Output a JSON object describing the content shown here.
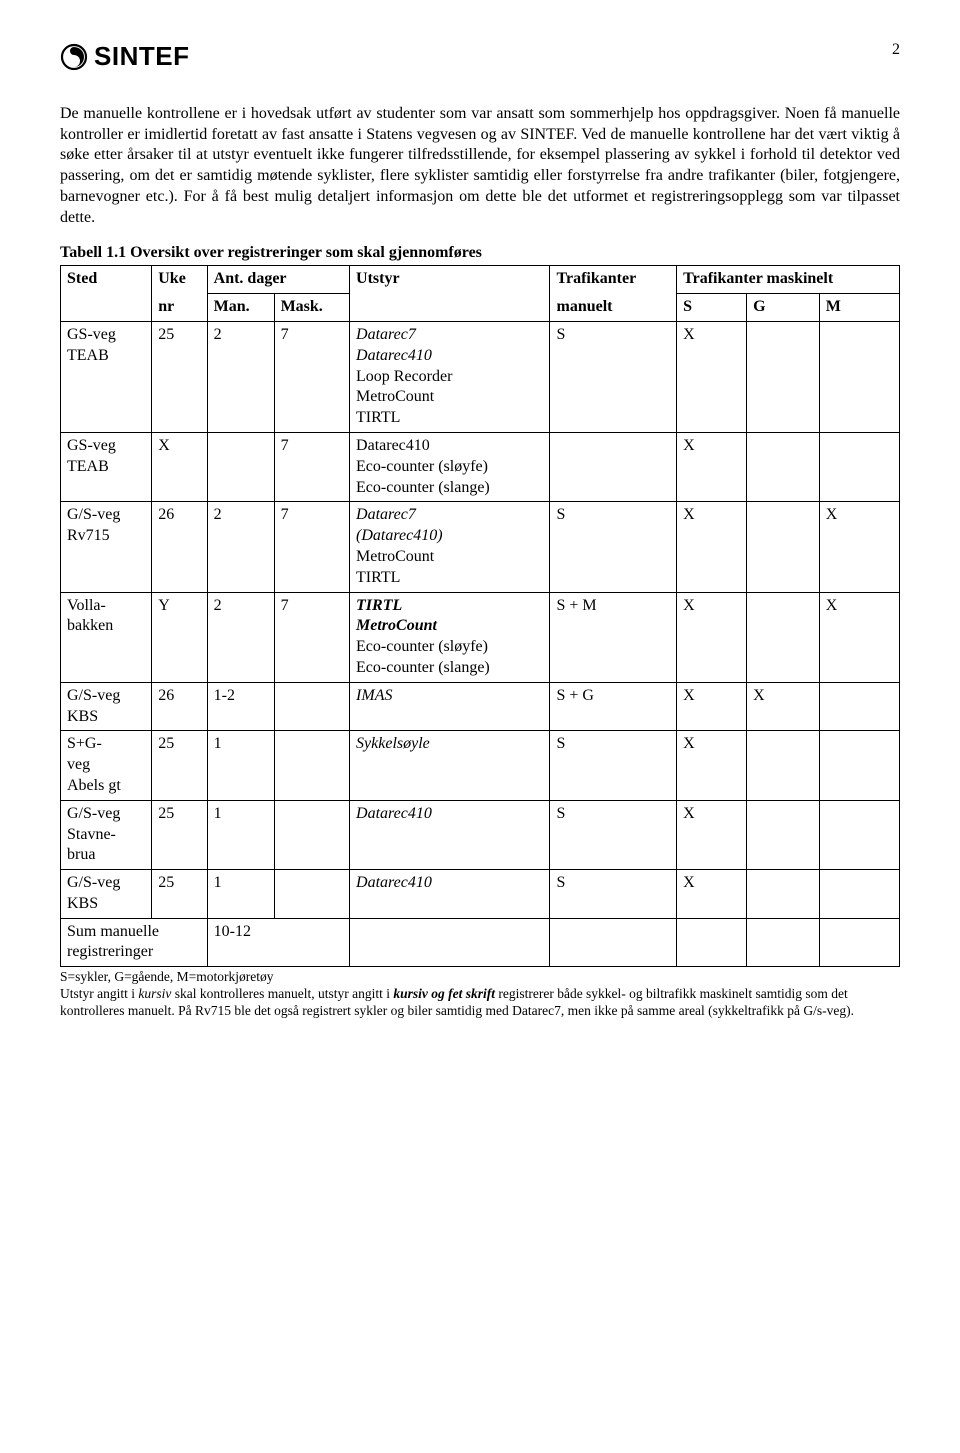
{
  "page": {
    "number": "2",
    "logo_text": "SINTEF"
  },
  "paragraphs": {
    "p1": "De manuelle kontrollene er i hovedsak utført av studenter som var ansatt som sommerhjelp hos oppdragsgiver. Noen få manuelle kontroller er imidlertid foretatt av fast ansatte i Statens vegvesen og av SINTEF. Ved de manuelle kontrollene har det vært viktig å søke etter årsaker til at utstyr eventuelt ikke fungerer tilfredsstillende, for eksempel plassering av sykkel i forhold til detektor ved passering, om det er samtidig møtende syklister, flere syklister samtidig eller forstyrrelse fra andre trafikanter (biler, fotgjengere, barnevogner etc.). For å få best mulig detaljert informasjon om dette ble det utformet et registreringsopplegg som var tilpasset dette."
  },
  "table": {
    "title": "Tabell 1.1 Oversikt over registreringer som skal gjennomføres",
    "headers": {
      "sted": "Sted",
      "uke": "Uke",
      "nr": "nr",
      "ant_dager": "Ant. dager",
      "man": "Man.",
      "mask": "Mask.",
      "utstyr": "Utstyr",
      "trafikanter_manuelt": "Trafikanter",
      "manuelt": "manuelt",
      "trafikanter_maskinelt": "Trafikanter maskinelt",
      "s": "S",
      "g": "G",
      "m": "M"
    },
    "rows": [
      {
        "sted": "GS-veg\nTEAB",
        "uke": "25",
        "man": "2",
        "mask": "7",
        "utstyr_lines": [
          {
            "t": "Datarec7",
            "style": "italic"
          },
          {
            "t": "Datarec410",
            "style": "italic"
          },
          {
            "t": "Loop Recorder",
            "style": ""
          },
          {
            "t": "MetroCount",
            "style": ""
          },
          {
            "t": "TIRTL",
            "style": ""
          }
        ],
        "manuelt": "S",
        "s": "X",
        "g": "",
        "m": ""
      },
      {
        "sted": "GS-veg\nTEAB",
        "uke": "X",
        "man": "",
        "mask": "7",
        "utstyr_lines": [
          {
            "t": "Datarec410",
            "style": ""
          },
          {
            "t": "Eco-counter (sløyfe)",
            "style": ""
          },
          {
            "t": "Eco-counter (slange)",
            "style": ""
          }
        ],
        "manuelt": "",
        "s": "X",
        "g": "",
        "m": ""
      },
      {
        "sted": "G/S-veg\nRv715",
        "uke": "26",
        "man": "2",
        "mask": "7",
        "utstyr_lines": [
          {
            "t": "Datarec7",
            "style": "italic"
          },
          {
            "t": "(Datarec410)",
            "style": "italic"
          },
          {
            "t": "MetroCount",
            "style": ""
          },
          {
            "t": "TIRTL",
            "style": ""
          }
        ],
        "manuelt": "S",
        "s": "X",
        "g": "",
        "m": "X"
      },
      {
        "sted": "Volla-\nbakken",
        "uke": "Y",
        "man": "2",
        "mask": "7",
        "utstyr_lines": [
          {
            "t": "TIRTL",
            "style": "bolditalic"
          },
          {
            "t": "MetroCount",
            "style": "bolditalic"
          },
          {
            "t": "Eco-counter (sløyfe)",
            "style": ""
          },
          {
            "t": "Eco-counter (slange)",
            "style": ""
          }
        ],
        "manuelt": "S + M",
        "s": "X",
        "g": "",
        "m": "X"
      },
      {
        "sted": "G/S-veg\nKBS",
        "uke": "26",
        "man": "1-2",
        "mask": "",
        "utstyr_lines": [
          {
            "t": "IMAS",
            "style": "italic"
          }
        ],
        "manuelt": "S + G",
        "s": "X",
        "g": "X",
        "m": ""
      },
      {
        "sted": "S+G-\nveg\nAbels gt",
        "uke": "25",
        "man": "1",
        "mask": "",
        "utstyr_lines": [
          {
            "t": "Sykkelsøyle",
            "style": "italic"
          }
        ],
        "manuelt": "S",
        "s": "X",
        "g": "",
        "m": ""
      },
      {
        "sted": "G/S-veg\nStavne-\nbrua",
        "uke": "25",
        "man": "1",
        "mask": "",
        "utstyr_lines": [
          {
            "t": "Datarec410",
            "style": "italic"
          }
        ],
        "manuelt": "S",
        "s": "X",
        "g": "",
        "m": ""
      },
      {
        "sted": "G/S-veg\nKBS",
        "uke": "25",
        "man": "1",
        "mask": "",
        "utstyr_lines": [
          {
            "t": "Datarec410",
            "style": "italic"
          }
        ],
        "manuelt": "S",
        "s": "X",
        "g": "",
        "m": ""
      }
    ],
    "sum_row": {
      "label": "Sum manuelle\nregistreringer",
      "value": "10-12"
    }
  },
  "footnote": {
    "line1_prefix": "S=sykler, G=gående, M=motorkjøretøy",
    "line2a": "Utstyr angitt i ",
    "line2b": "kursiv",
    "line2c": " skal kontrolleres manuelt, utstyr angitt i ",
    "line2d": "kursiv og fet skrift",
    "line2e": " registrerer både sykkel- og biltrafikk maskinelt samtidig som det kontrolleres manuelt. På Rv715 ble det også registrert sykler og biler samtidig med Datarec7, men ikke på samme areal (sykkeltrafikk på G/s-veg)."
  }
}
